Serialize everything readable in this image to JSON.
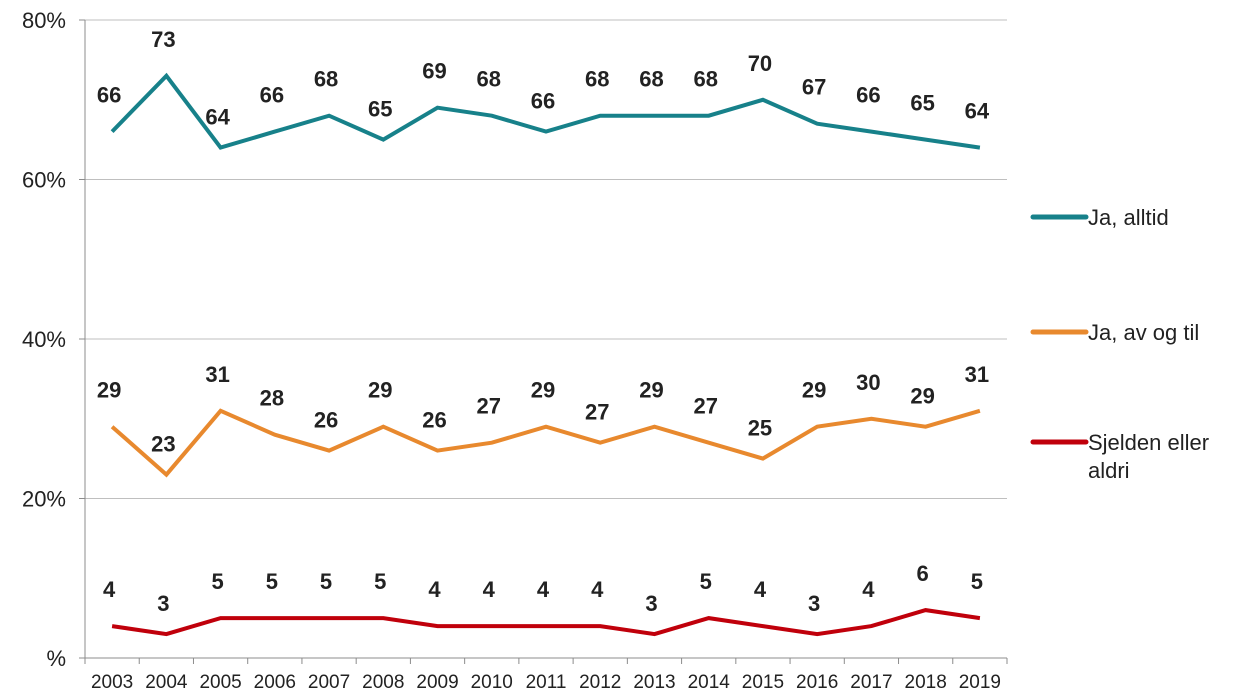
{
  "chart_data": {
    "type": "line",
    "x": [
      "2003",
      "2004",
      "2005",
      "2006",
      "2007",
      "2008",
      "2009",
      "2010",
      "2011",
      "2012",
      "2013",
      "2014",
      "2015",
      "2016",
      "2017",
      "2018",
      "2019"
    ],
    "y_ticks": [
      "%",
      "20%",
      "40%",
      "60%",
      "80%"
    ],
    "ylim": [
      0,
      80
    ],
    "grid": true,
    "legend_position": "right",
    "series": [
      {
        "name": "Ja, alltid",
        "color": "#17818a",
        "values": [
          66,
          73,
          64,
          66,
          68,
          65,
          69,
          68,
          66,
          68,
          68,
          68,
          70,
          67,
          66,
          65,
          64
        ]
      },
      {
        "name": "Ja, av og til",
        "color": "#e8892e",
        "values": [
          29,
          23,
          31,
          28,
          26,
          29,
          26,
          27,
          29,
          27,
          29,
          27,
          25,
          29,
          30,
          29,
          31
        ]
      },
      {
        "name_lines": [
          "Sjelden eller",
          "aldri"
        ],
        "color": "#c0000b",
        "values": [
          4,
          3,
          5,
          5,
          5,
          5,
          4,
          4,
          4,
          4,
          3,
          5,
          4,
          3,
          4,
          6,
          5
        ]
      }
    ]
  }
}
